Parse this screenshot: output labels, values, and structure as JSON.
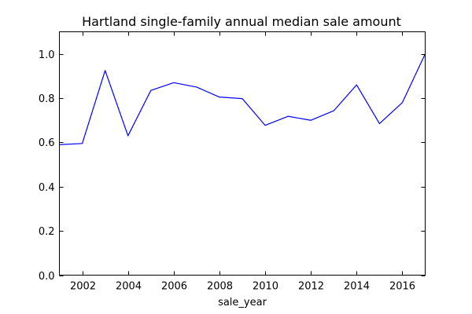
{
  "chart_data": {
    "type": "line",
    "title": "Hartland single-family annual median sale amount",
    "xlabel": "sale_year",
    "ylabel": "",
    "xlim": [
      2001,
      2017
    ],
    "ylim": [
      0.0,
      1.1
    ],
    "x_ticks": [
      2002,
      2004,
      2006,
      2008,
      2010,
      2012,
      2014,
      2016
    ],
    "x_tick_labels": [
      "2002",
      "2004",
      "2006",
      "2008",
      "2010",
      "2012",
      "2014",
      "2016"
    ],
    "y_ticks": [
      0.0,
      0.2,
      0.4,
      0.6,
      0.8,
      1.0
    ],
    "y_tick_labels": [
      "0.0",
      "0.2",
      "0.4",
      "0.6",
      "0.8",
      "1.0"
    ],
    "grid": false,
    "legend": false,
    "series": [
      {
        "color": "#0000ff",
        "x": [
          2001,
          2002,
          2003,
          2004,
          2005,
          2006,
          2007,
          2008,
          2009,
          2010,
          2011,
          2012,
          2013,
          2014,
          2015,
          2016,
          2017
        ],
        "values": [
          0.59,
          0.595,
          0.925,
          0.63,
          0.835,
          0.87,
          0.85,
          0.805,
          0.798,
          0.677,
          0.718,
          0.7,
          0.743,
          0.86,
          0.685,
          0.78,
          1.0
        ]
      }
    ]
  }
}
